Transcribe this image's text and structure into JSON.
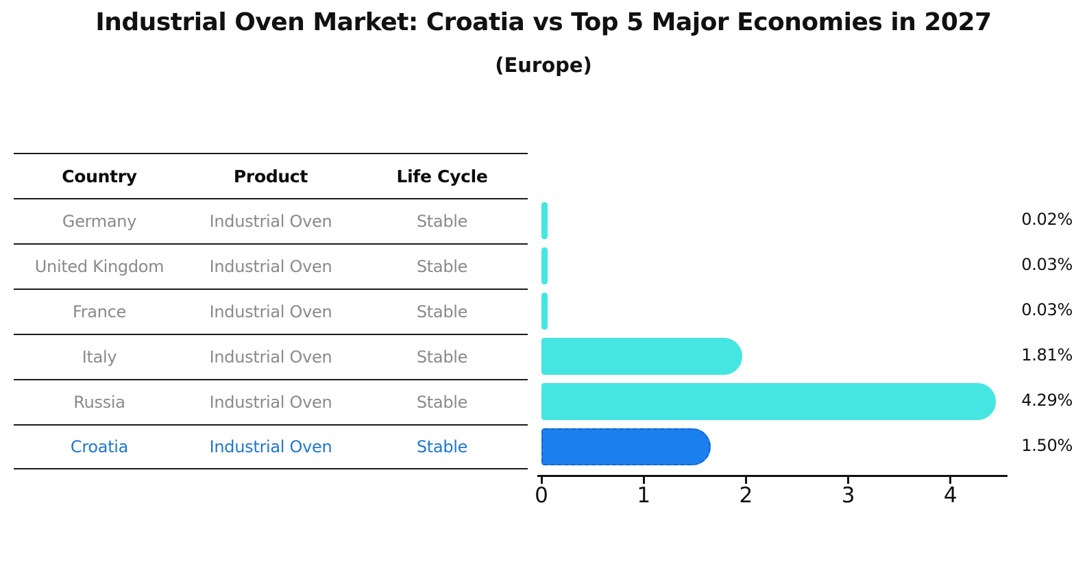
{
  "title": "Industrial Oven Market: Croatia vs Top 5 Major Economies in 2027",
  "subtitle": "(Europe)",
  "table": {
    "headers": [
      "Country",
      "Product",
      "Life Cycle"
    ],
    "rows": [
      {
        "country": "Germany",
        "product": "Industrial Oven",
        "life_cycle": "Stable",
        "highlight": false
      },
      {
        "country": "United Kingdom",
        "product": "Industrial Oven",
        "life_cycle": "Stable",
        "highlight": false
      },
      {
        "country": "France",
        "product": "Industrial Oven",
        "life_cycle": "Stable",
        "highlight": false
      },
      {
        "country": "Italy",
        "product": "Industrial Oven",
        "life_cycle": "Stable",
        "highlight": false
      },
      {
        "country": "Russia",
        "product": "Industrial Oven",
        "life_cycle": "Stable",
        "highlight": false
      },
      {
        "country": "Croatia",
        "product": "Industrial Oven",
        "life_cycle": "Stable",
        "highlight": true
      }
    ]
  },
  "chart_data": {
    "type": "bar",
    "orientation": "horizontal",
    "categories": [
      "Germany",
      "United Kingdom",
      "France",
      "Italy",
      "Russia",
      "Croatia"
    ],
    "values": [
      0.02,
      0.03,
      0.03,
      1.81,
      4.29,
      1.5
    ],
    "value_labels": [
      "0.02%",
      "0.03%",
      "0.03%",
      "1.81%",
      "4.29%",
      "1.50%"
    ],
    "xticks": [
      "0",
      "1",
      "2",
      "3",
      "4"
    ],
    "xlim": [
      0,
      4.6
    ],
    "grid": false,
    "legend": false,
    "highlight_index": 5,
    "bar_color": "#45E6E2",
    "highlight_bar_color": "#1B80EE",
    "highlight_border_color": "#0F63D4",
    "highlight_text_color": "#1f77d0"
  }
}
